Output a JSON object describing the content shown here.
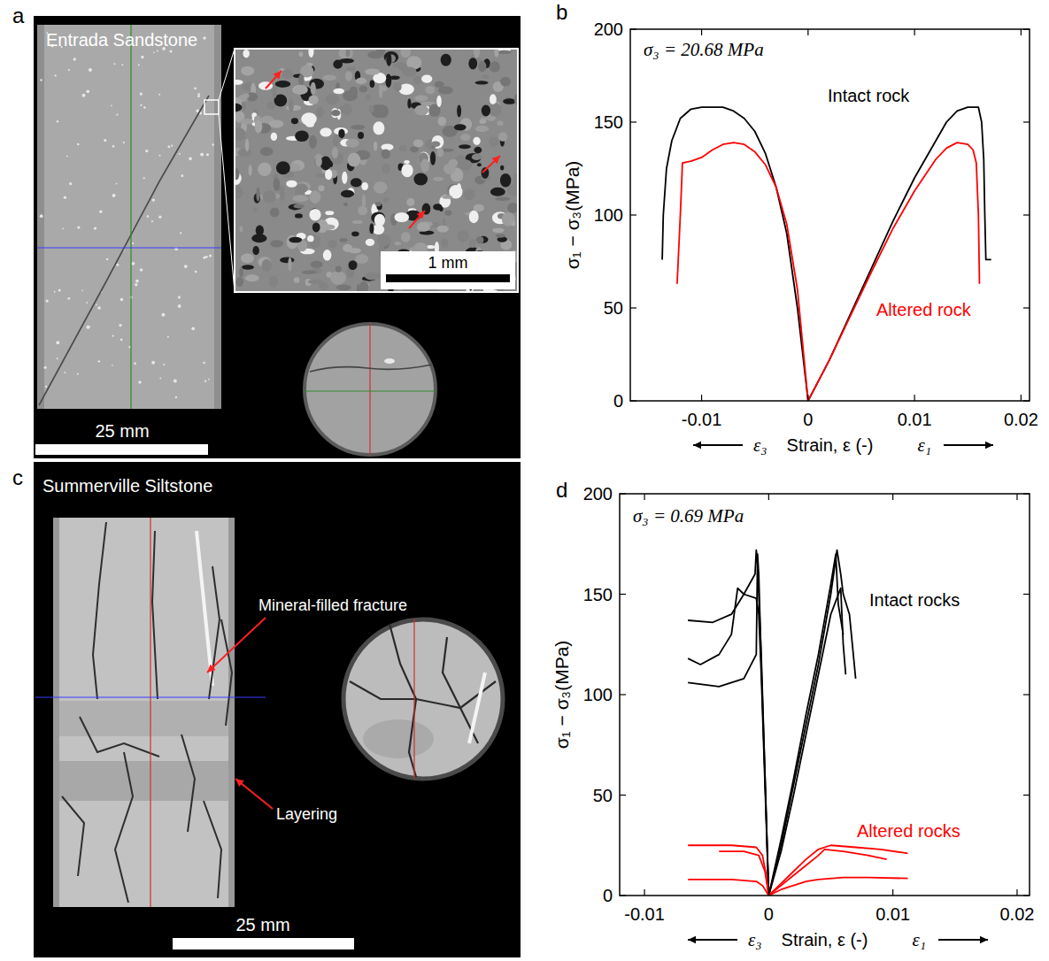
{
  "images": [
    {
      "panel_label": "a",
      "title": "Entrada Sandstone",
      "scale_bar": "25 mm",
      "inset_scale_bar": "1 mm"
    },
    {
      "panel_label": "c",
      "title": "Summerville Siltstone",
      "annotations": [
        "Mineral-filled fracture",
        "Layering"
      ],
      "scale_bar": "25 mm"
    }
  ],
  "chart_data": [
    {
      "type": "line",
      "panel_label": "b",
      "xlabel": "Strain, ε (-)",
      "x_direction_labels": [
        "ε₃",
        "ε₁"
      ],
      "ylabel": "σ₁ − σ₃(MPa)",
      "xlim": [
        -0.0167,
        0.0208
      ],
      "xticks": [
        -0.01,
        0,
        0.01,
        0.02
      ],
      "ylim": [
        0,
        200
      ],
      "yticks": [
        0,
        50,
        100,
        150,
        200
      ],
      "grid": false,
      "annotations": [
        {
          "text": "σ₃ = 20.68 MPa"
        },
        {
          "text": "Intact rock",
          "color": "#000000"
        },
        {
          "text": "Altered rock",
          "color": "#ff0000"
        }
      ],
      "series": [
        {
          "color": "#000000",
          "x": [
            -0.0137,
            -0.0136,
            -0.0133,
            -0.0128,
            -0.012,
            -0.011,
            -0.01,
            -0.008,
            -0.007,
            -0.006,
            -0.005,
            -0.004,
            -0.003,
            -0.002,
            -0.001,
            -0.0005,
            0,
            0.002,
            0.004,
            0.006,
            0.008,
            0.01,
            0.012,
            0.013,
            0.014,
            0.015,
            0.016,
            0.0163,
            0.0165,
            0.0166,
            0.0167,
            0.0172
          ],
          "values": [
            76,
            100,
            125,
            140,
            152,
            157,
            158,
            158,
            156,
            152,
            145,
            133,
            115,
            90,
            50,
            25,
            0,
            22,
            47,
            72,
            97,
            120,
            140,
            150,
            156,
            158,
            158,
            150,
            130,
            100,
            76,
            76
          ]
        },
        {
          "color": "#ff0000",
          "x": [
            -0.0123,
            -0.012,
            -0.0118,
            -0.011,
            -0.01,
            -0.009,
            -0.008,
            -0.007,
            -0.006,
            -0.005,
            -0.004,
            -0.003,
            -0.002,
            -0.001,
            -0.0005,
            0,
            0.002,
            0.004,
            0.006,
            0.008,
            0.01,
            0.012,
            0.013,
            0.014,
            0.015,
            0.0155,
            0.0158,
            0.016,
            0.0161
          ],
          "values": [
            63,
            100,
            128,
            129,
            131,
            135,
            138,
            139,
            138,
            134,
            127,
            115,
            95,
            60,
            30,
            0,
            22,
            46,
            70,
            93,
            113,
            130,
            136,
            139,
            138,
            135,
            128,
            100,
            63
          ]
        }
      ]
    },
    {
      "type": "line",
      "panel_label": "d",
      "xlabel": "Strain, ε (-)",
      "x_direction_labels": [
        "ε₃",
        "ε₁"
      ],
      "ylabel": "σ₁ − σ₃(MPa)",
      "xlim": [
        -0.012,
        0.021
      ],
      "xticks": [
        -0.01,
        0,
        0.01,
        0.02
      ],
      "ylim": [
        0,
        200
      ],
      "yticks": [
        0,
        50,
        100,
        150,
        200
      ],
      "grid": false,
      "annotations": [
        {
          "text": "σ₃ = 0.69 MPa"
        },
        {
          "text": "Intact rocks",
          "color": "#000000"
        },
        {
          "text": "Altered rocks",
          "color": "#ff0000"
        }
      ],
      "series": [
        {
          "color": "#000000",
          "x": [
            -0.0065,
            -0.0045,
            -0.003,
            -0.002,
            -0.0011,
            -0.001,
            -0.0009,
            -0.0006,
            -0.0003,
            0,
            0.001,
            0.002,
            0.003,
            0.004,
            0.005,
            0.0055,
            0.0058,
            0.006,
            0.0065,
            0.007
          ],
          "values": [
            137,
            136,
            140,
            150,
            160,
            172,
            165,
            120,
            60,
            0,
            25,
            55,
            85,
            115,
            150,
            172,
            160,
            150,
            140,
            108
          ]
        },
        {
          "color": "#000000",
          "x": [
            -0.0065,
            -0.0055,
            -0.004,
            -0.003,
            -0.0025,
            -0.002,
            -0.001,
            -0.0008,
            -0.0006,
            -0.0003,
            0,
            0.001,
            0.002,
            0.003,
            0.004,
            0.005,
            0.0058,
            0.006,
            0.0062
          ],
          "values": [
            118,
            115,
            120,
            130,
            153,
            150,
            148,
            140,
            110,
            55,
            0,
            22,
            50,
            80,
            110,
            140,
            153,
            125,
            110
          ]
        },
        {
          "color": "#000000",
          "x": [
            -0.0065,
            -0.004,
            -0.002,
            -0.001,
            -0.0009,
            -0.0008,
            -0.0006,
            -0.0003,
            0,
            0.001,
            0.002,
            0.003,
            0.004,
            0.005,
            0.0054,
            0.0056,
            0.006
          ],
          "values": [
            106,
            104,
            108,
            120,
            170,
            160,
            115,
            60,
            0,
            28,
            58,
            90,
            120,
            155,
            170,
            145,
            130
          ]
        },
        {
          "color": "#ff0000",
          "x": [
            -0.0065,
            -0.005,
            -0.003,
            -0.001,
            -0.0005,
            -0.0002,
            0,
            0.001,
            0.002,
            0.003,
            0.004,
            0.005,
            0.007,
            0.009,
            0.0112
          ],
          "values": [
            25,
            25,
            25,
            24,
            20,
            10,
            0,
            6,
            12,
            18,
            23,
            25,
            24,
            23,
            21
          ]
        },
        {
          "color": "#ff0000",
          "x": [
            -0.004,
            -0.002,
            -0.0008,
            -0.0003,
            0,
            0.001,
            0.002,
            0.003,
            0.004,
            0.0045,
            0.006,
            0.008,
            0.0095
          ],
          "values": [
            22,
            22,
            20,
            12,
            0,
            5,
            10,
            15,
            20,
            23,
            22,
            20,
            18
          ]
        },
        {
          "color": "#ff0000",
          "x": [
            -0.0065,
            -0.003,
            -0.001,
            -0.0005,
            0,
            0.001,
            0.002,
            0.003,
            0.004,
            0.006,
            0.008,
            0.0112
          ],
          "values": [
            8,
            8,
            7,
            5,
            0,
            3,
            5,
            7,
            8,
            9,
            9,
            8.5
          ]
        }
      ]
    }
  ]
}
